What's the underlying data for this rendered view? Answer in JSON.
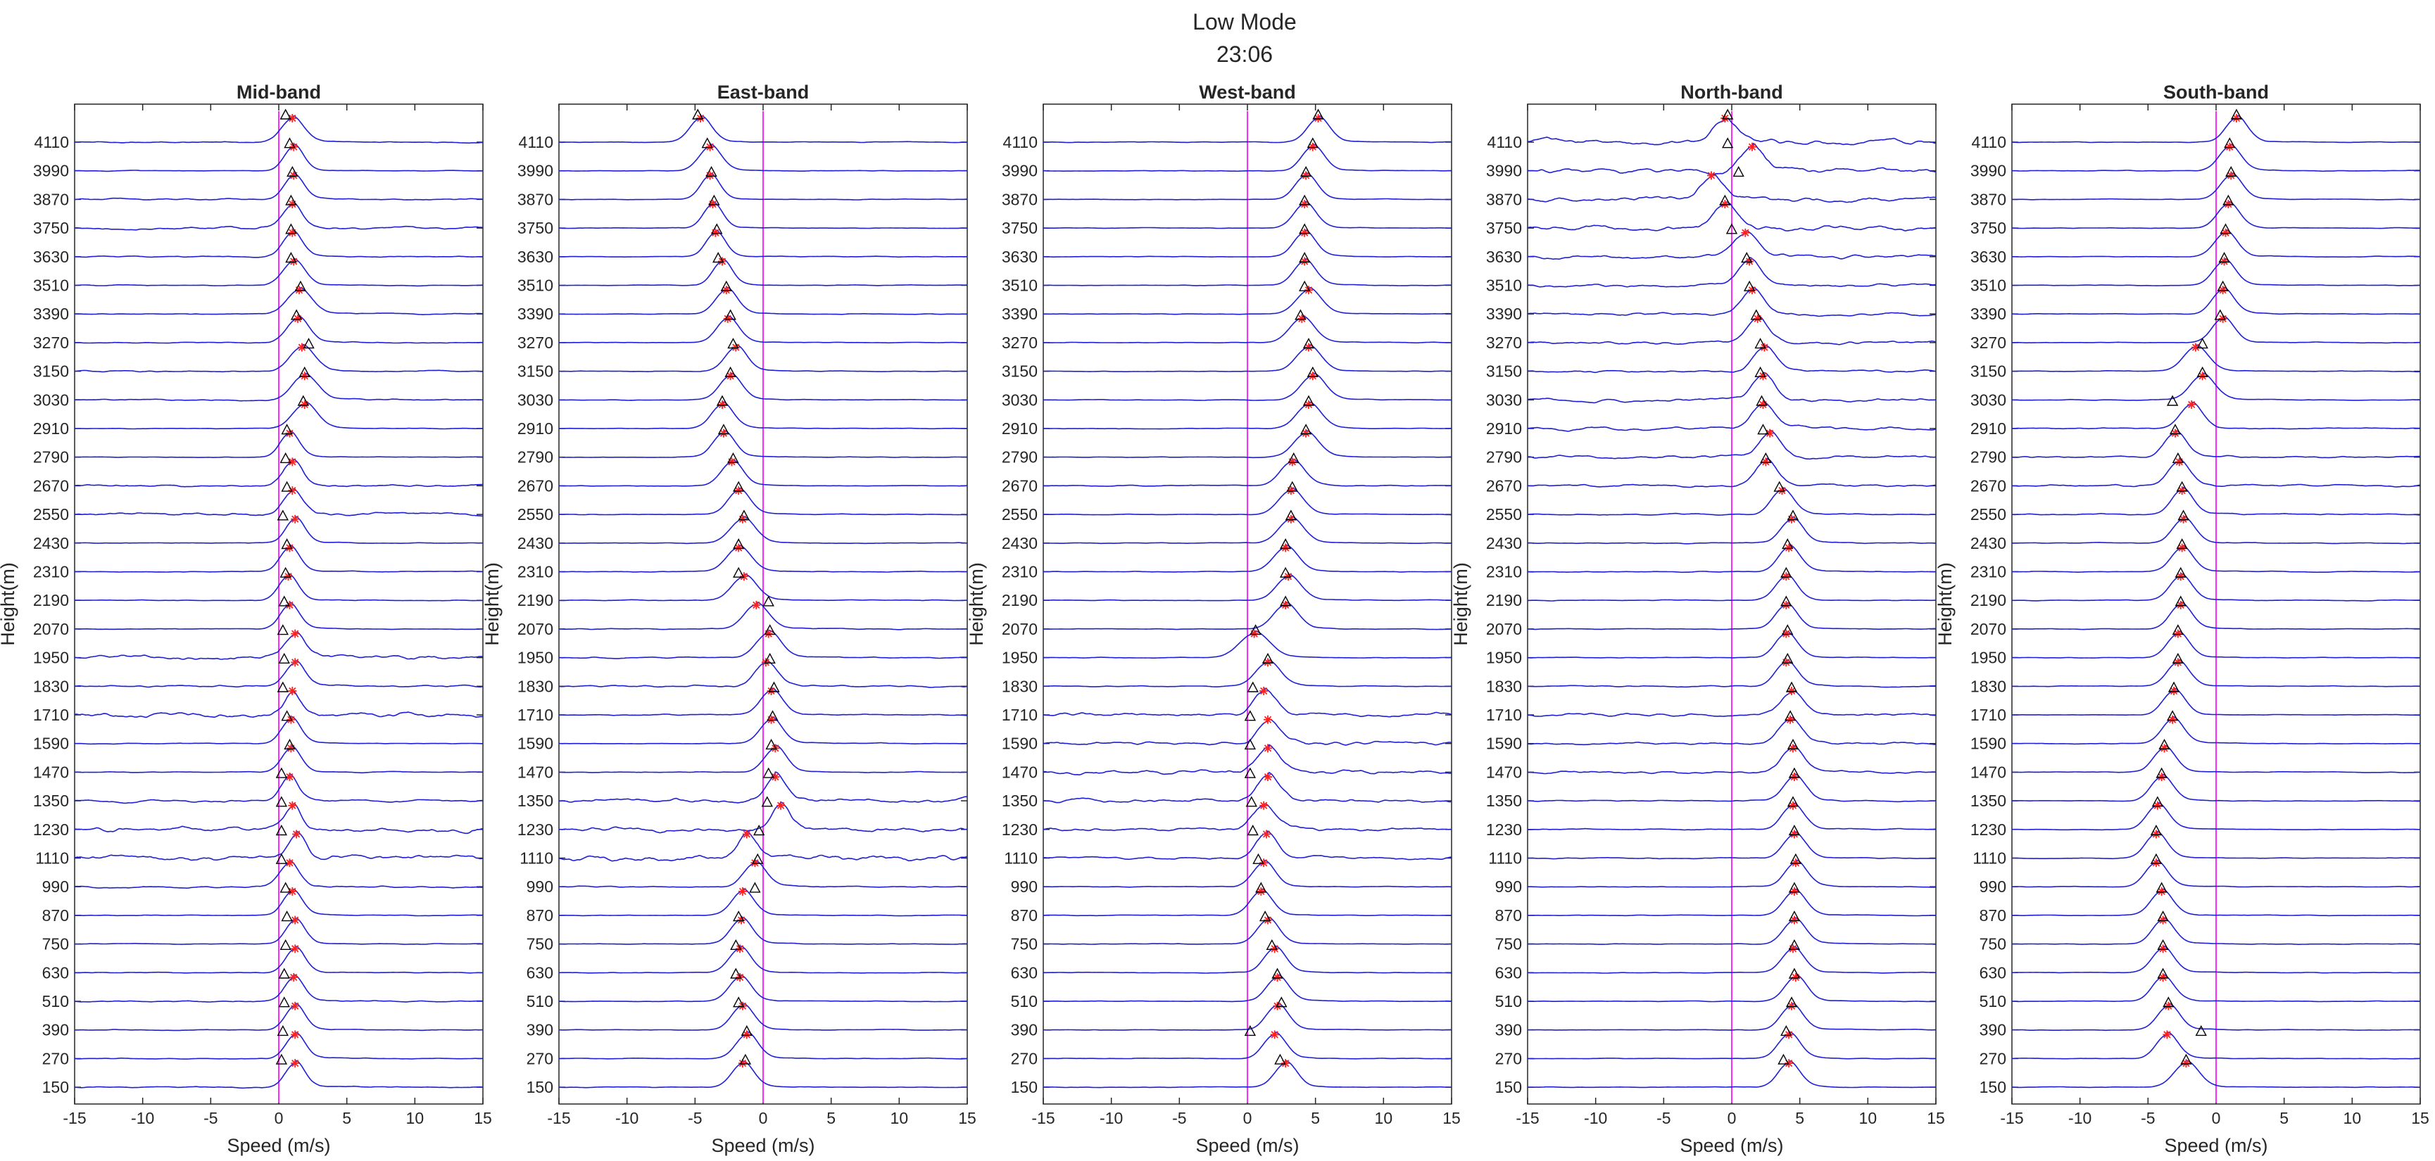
{
  "figure": {
    "title": "Low Mode",
    "subtitle": "23:06"
  },
  "colors": {
    "spectrum": "#1f1fd6",
    "zero_line": "#ff2bff",
    "peak_marker": "#ff2020",
    "triangle_marker": "#000000",
    "axis": "#262626"
  },
  "chart_data": [
    {
      "type": "line",
      "title": "Mid-band",
      "xlabel": "Speed (m/s)",
      "ylabel": "Height(m)",
      "xlim": [
        -15,
        15
      ],
      "x_ticks": [
        "-15",
        "-10",
        "-5",
        "0",
        "5",
        "10",
        "15"
      ],
      "heights": [
        "4110",
        "3990",
        "3870",
        "3750",
        "3630",
        "3510",
        "3390",
        "3270",
        "3150",
        "3030",
        "2910",
        "2790",
        "2670",
        "2550",
        "2430",
        "2310",
        "2190",
        "2070",
        "1950",
        "1830",
        "1710",
        "1590",
        "1470",
        "1350",
        "1230",
        "1110",
        "990",
        "870",
        "750",
        "630",
        "510",
        "390",
        "270",
        "150"
      ],
      "peak_speed": [
        1.0,
        1.1,
        1.1,
        1.0,
        1.0,
        1.1,
        1.5,
        1.4,
        1.7,
        1.9,
        1.9,
        0.8,
        1.0,
        1.0,
        1.2,
        0.8,
        0.7,
        0.8,
        1.2,
        1.2,
        1.0,
        0.9,
        0.9,
        0.8,
        1.0,
        1.3,
        0.8,
        1.0,
        1.2,
        1.2,
        1.1,
        1.2,
        1.2,
        1.2
      ],
      "triangle_speed": [
        0.5,
        0.8,
        1.0,
        0.9,
        0.9,
        0.9,
        1.6,
        1.3,
        2.2,
        1.9,
        1.8,
        0.6,
        0.5,
        0.6,
        0.3,
        0.6,
        0.5,
        0.4,
        0.3,
        0.4,
        0.3,
        0.6,
        0.8,
        0.2,
        0.2,
        0.2,
        0.2,
        0.5,
        0.6,
        0.5,
        0.4,
        0.4,
        0.3,
        0.2
      ],
      "peak_width": [
        0.8,
        0.7,
        0.7,
        0.7,
        0.7,
        0.8,
        0.9,
        0.8,
        0.9,
        0.9,
        0.9,
        0.7,
        0.7,
        0.7,
        0.7,
        0.7,
        0.7,
        0.7,
        0.7,
        0.7,
        0.6,
        0.7,
        0.7,
        0.6,
        0.6,
        0.6,
        0.7,
        0.7,
        0.7,
        0.7,
        0.7,
        0.7,
        0.7,
        0.7
      ],
      "noise": [
        0.1,
        0.05,
        0.12,
        0.2,
        0.1,
        0.06,
        0.08,
        0.08,
        0.1,
        0.12,
        0.05,
        0.05,
        0.2,
        0.25,
        0.05,
        0.06,
        0.06,
        0.05,
        0.35,
        0.15,
        0.4,
        0.06,
        0.06,
        0.2,
        0.4,
        0.4,
        0.15,
        0.06,
        0.06,
        0.06,
        0.1,
        0.06,
        0.06,
        0.1
      ],
      "zero_line": 0
    },
    {
      "type": "line",
      "title": "East-band",
      "xlabel": "Speed (m/s)",
      "ylabel": "Height(m)",
      "xlim": [
        -15,
        15
      ],
      "x_ticks": [
        "-15",
        "-10",
        "-5",
        "0",
        "5",
        "10",
        "15"
      ],
      "heights": [
        "4110",
        "3990",
        "3870",
        "3750",
        "3630",
        "3510",
        "3390",
        "3270",
        "3150",
        "3030",
        "2910",
        "2790",
        "2670",
        "2550",
        "2430",
        "2310",
        "2190",
        "2070",
        "1950",
        "1830",
        "1710",
        "1590",
        "1470",
        "1350",
        "1230",
        "1110",
        "990",
        "870",
        "750",
        "630",
        "510",
        "390",
        "270",
        "150"
      ],
      "peak_speed": [
        -4.6,
        -3.9,
        -3.9,
        -3.7,
        -3.5,
        -3.0,
        -2.7,
        -2.6,
        -2.0,
        -2.4,
        -3.0,
        -2.9,
        -2.3,
        -1.8,
        -1.5,
        -1.8,
        -1.4,
        -0.5,
        0.4,
        0.2,
        0.6,
        0.6,
        0.9,
        0.9,
        1.3,
        -1.2,
        -0.6,
        -1.5,
        -1.6,
        -1.7,
        -1.7,
        -1.5,
        -1.2,
        -1.5
      ],
      "triangle_speed": [
        -4.8,
        -4.1,
        -3.8,
        -3.6,
        -3.4,
        -3.3,
        -2.7,
        -2.4,
        -2.2,
        -2.4,
        -3.0,
        -2.9,
        -2.2,
        -1.8,
        -1.4,
        -1.8,
        -1.8,
        0.4,
        0.5,
        0.5,
        0.8,
        0.7,
        0.6,
        0.4,
        0.3,
        -0.3,
        -0.4,
        -0.6,
        -1.8,
        -2.0,
        -2.0,
        -1.8,
        -1.2,
        -1.3
      ],
      "peak_width": [
        0.8,
        0.8,
        0.7,
        0.7,
        0.7,
        0.7,
        0.8,
        0.8,
        0.8,
        0.8,
        0.8,
        0.8,
        0.8,
        0.8,
        0.9,
        0.9,
        0.9,
        0.9,
        0.9,
        0.8,
        0.8,
        0.8,
        0.8,
        0.7,
        0.7,
        0.7,
        0.8,
        0.8,
        0.8,
        0.8,
        0.8,
        0.8,
        0.8,
        0.8
      ],
      "noise": [
        0.05,
        0.05,
        0.05,
        0.05,
        0.05,
        0.05,
        0.05,
        0.05,
        0.05,
        0.05,
        0.05,
        0.05,
        0.05,
        0.05,
        0.05,
        0.06,
        0.06,
        0.08,
        0.1,
        0.15,
        0.1,
        0.06,
        0.06,
        0.35,
        0.4,
        0.45,
        0.1,
        0.05,
        0.05,
        0.05,
        0.05,
        0.05,
        0.05,
        0.05
      ],
      "zero_line": 0
    },
    {
      "type": "line",
      "title": "West-band",
      "xlabel": "Speed (m/s)",
      "ylabel": "Height(m)",
      "xlim": [
        -15,
        15
      ],
      "x_ticks": [
        "-15",
        "-10",
        "-5",
        "0",
        "5",
        "10",
        "15"
      ],
      "heights": [
        "4110",
        "3990",
        "3870",
        "3750",
        "3630",
        "3510",
        "3390",
        "3270",
        "3150",
        "3030",
        "2910",
        "2790",
        "2670",
        "2550",
        "2430",
        "2310",
        "2190",
        "2070",
        "1950",
        "1830",
        "1710",
        "1590",
        "1470",
        "1350",
        "1230",
        "1110",
        "990",
        "870",
        "750",
        "630",
        "510",
        "390",
        "270",
        "150"
      ],
      "peak_speed": [
        5.2,
        4.8,
        4.3,
        4.2,
        4.2,
        4.2,
        4.5,
        4.0,
        4.5,
        4.8,
        4.5,
        4.3,
        3.3,
        3.2,
        3.2,
        2.8,
        3.0,
        2.8,
        0.5,
        1.5,
        1.2,
        1.5,
        1.5,
        1.5,
        1.2,
        1.4,
        1.2,
        1.0,
        1.5,
        2.0,
        2.2,
        2.2,
        2.0,
        2.8
      ],
      "triangle_speed": [
        5.2,
        4.8,
        4.3,
        4.2,
        4.2,
        4.2,
        4.2,
        3.9,
        4.5,
        4.8,
        4.5,
        4.3,
        3.4,
        3.3,
        3.2,
        2.8,
        2.8,
        2.8,
        0.6,
        1.5,
        0.4,
        0.2,
        0.2,
        0.2,
        0.3,
        0.4,
        0.8,
        1.0,
        1.3,
        1.8,
        2.2,
        2.5,
        0.2,
        2.4
      ],
      "peak_width": [
        0.8,
        0.8,
        0.8,
        0.8,
        0.8,
        0.8,
        0.9,
        0.9,
        0.9,
        0.9,
        0.9,
        0.9,
        0.9,
        0.9,
        0.9,
        0.9,
        0.9,
        0.9,
        1.1,
        0.9,
        0.8,
        0.8,
        0.8,
        0.8,
        0.8,
        0.8,
        0.8,
        0.8,
        0.8,
        0.8,
        0.8,
        0.8,
        0.8,
        0.8
      ],
      "noise": [
        0.05,
        0.05,
        0.05,
        0.05,
        0.05,
        0.05,
        0.05,
        0.05,
        0.05,
        0.05,
        0.05,
        0.05,
        0.08,
        0.05,
        0.05,
        0.05,
        0.05,
        0.05,
        0.05,
        0.06,
        0.3,
        0.3,
        0.35,
        0.3,
        0.3,
        0.25,
        0.06,
        0.05,
        0.05,
        0.05,
        0.05,
        0.05,
        0.05,
        0.05
      ],
      "zero_line": 0
    },
    {
      "type": "line",
      "title": "North-band",
      "xlabel": "Speed (m/s)",
      "ylabel": "Height(m)",
      "xlim": [
        -15,
        15
      ],
      "x_ticks": [
        "-15",
        "-10",
        "-5",
        "0",
        "5",
        "10",
        "15"
      ],
      "heights": [
        "4110",
        "3990",
        "3870",
        "3750",
        "3630",
        "3510",
        "3390",
        "3270",
        "3150",
        "3030",
        "2910",
        "2790",
        "2670",
        "2550",
        "2430",
        "2310",
        "2190",
        "2070",
        "1950",
        "1830",
        "1710",
        "1590",
        "1470",
        "1350",
        "1230",
        "1110",
        "990",
        "870",
        "750",
        "630",
        "510",
        "390",
        "270",
        "150"
      ],
      "peak_speed": [
        -0.5,
        1.5,
        -1.5,
        -0.5,
        1.0,
        1.3,
        1.5,
        1.9,
        2.4,
        2.3,
        2.3,
        2.8,
        2.5,
        3.7,
        4.4,
        4.2,
        4.0,
        4.0,
        4.0,
        4.0,
        4.4,
        4.3,
        4.5,
        4.6,
        4.5,
        4.6,
        4.7,
        4.6,
        4.6,
        4.5,
        4.7,
        4.4,
        4.2,
        4.2
      ],
      "triangle_speed": [
        -0.3,
        -0.3,
        0.5,
        -0.5,
        0.0,
        1.1,
        1.3,
        1.8,
        2.1,
        2.1,
        2.2,
        2.3,
        2.5,
        3.5,
        4.5,
        4.1,
        4.0,
        4.0,
        4.1,
        4.1,
        4.4,
        4.3,
        4.5,
        4.6,
        4.5,
        4.6,
        4.7,
        4.6,
        4.6,
        4.6,
        4.6,
        4.4,
        4.0,
        3.8
      ],
      "peak_width": [
        0.8,
        0.8,
        0.8,
        0.8,
        0.9,
        0.8,
        0.8,
        0.8,
        0.8,
        0.8,
        0.8,
        0.8,
        0.8,
        0.8,
        0.8,
        0.8,
        0.8,
        0.8,
        0.8,
        0.8,
        0.8,
        0.8,
        0.8,
        0.8,
        0.8,
        0.8,
        0.8,
        0.8,
        0.8,
        0.8,
        0.8,
        0.8,
        0.8,
        0.8
      ],
      "noise": [
        0.4,
        0.4,
        0.4,
        0.4,
        0.3,
        0.25,
        0.25,
        0.25,
        0.2,
        0.25,
        0.25,
        0.25,
        0.2,
        0.1,
        0.08,
        0.06,
        0.06,
        0.06,
        0.06,
        0.1,
        0.25,
        0.2,
        0.2,
        0.1,
        0.1,
        0.08,
        0.06,
        0.05,
        0.05,
        0.05,
        0.05,
        0.05,
        0.05,
        0.05
      ],
      "zero_line": 0
    },
    {
      "type": "line",
      "title": "South-band",
      "xlabel": "Speed (m/s)",
      "ylabel": "Height(m)",
      "xlim": [
        -15,
        15
      ],
      "x_ticks": [
        "-15",
        "-10",
        "-5",
        "0",
        "5",
        "10",
        "15"
      ],
      "heights": [
        "4110",
        "3990",
        "3870",
        "3750",
        "3630",
        "3510",
        "3390",
        "3270",
        "3150",
        "3030",
        "2910",
        "2790",
        "2670",
        "2550",
        "2430",
        "2310",
        "2190",
        "2070",
        "1950",
        "1830",
        "1710",
        "1590",
        "1470",
        "1350",
        "1230",
        "1110",
        "990",
        "870",
        "750",
        "630",
        "510",
        "390",
        "270",
        "150"
      ],
      "peak_speed": [
        1.5,
        1.0,
        1.1,
        0.9,
        0.7,
        0.6,
        0.5,
        0.5,
        -1.5,
        -1.0,
        -1.8,
        -3.0,
        -2.7,
        -2.5,
        -2.4,
        -2.5,
        -2.6,
        -2.6,
        -2.8,
        -2.8,
        -3.1,
        -3.2,
        -3.8,
        -4.0,
        -4.3,
        -4.4,
        -4.4,
        -4.0,
        -3.9,
        -3.9,
        -3.9,
        -3.5,
        -3.6,
        -2.2
      ],
      "triangle_speed": [
        1.5,
        1.0,
        1.1,
        0.9,
        0.7,
        0.6,
        0.5,
        0.3,
        -1.0,
        -1.0,
        -3.2,
        -3.0,
        -2.8,
        -2.5,
        -2.4,
        -2.5,
        -2.6,
        -2.6,
        -2.8,
        -2.8,
        -3.1,
        -3.2,
        -3.8,
        -4.0,
        -4.3,
        -4.4,
        -4.4,
        -4.0,
        -3.9,
        -3.9,
        -3.9,
        -3.5,
        -1.1,
        -2.2
      ],
      "peak_width": [
        0.8,
        0.8,
        0.8,
        0.8,
        0.8,
        0.8,
        0.8,
        0.8,
        0.9,
        0.9,
        0.8,
        0.8,
        0.8,
        0.8,
        0.8,
        0.8,
        0.8,
        0.8,
        0.8,
        0.8,
        0.8,
        0.8,
        0.8,
        0.8,
        0.8,
        0.8,
        0.8,
        0.8,
        0.8,
        0.8,
        0.8,
        0.8,
        0.8,
        0.9
      ],
      "noise": [
        0.05,
        0.05,
        0.05,
        0.05,
        0.05,
        0.05,
        0.05,
        0.05,
        0.06,
        0.06,
        0.1,
        0.15,
        0.15,
        0.1,
        0.06,
        0.05,
        0.05,
        0.05,
        0.05,
        0.05,
        0.05,
        0.05,
        0.05,
        0.05,
        0.05,
        0.05,
        0.05,
        0.05,
        0.05,
        0.05,
        0.05,
        0.05,
        0.05,
        0.05
      ],
      "zero_line": 0
    }
  ]
}
